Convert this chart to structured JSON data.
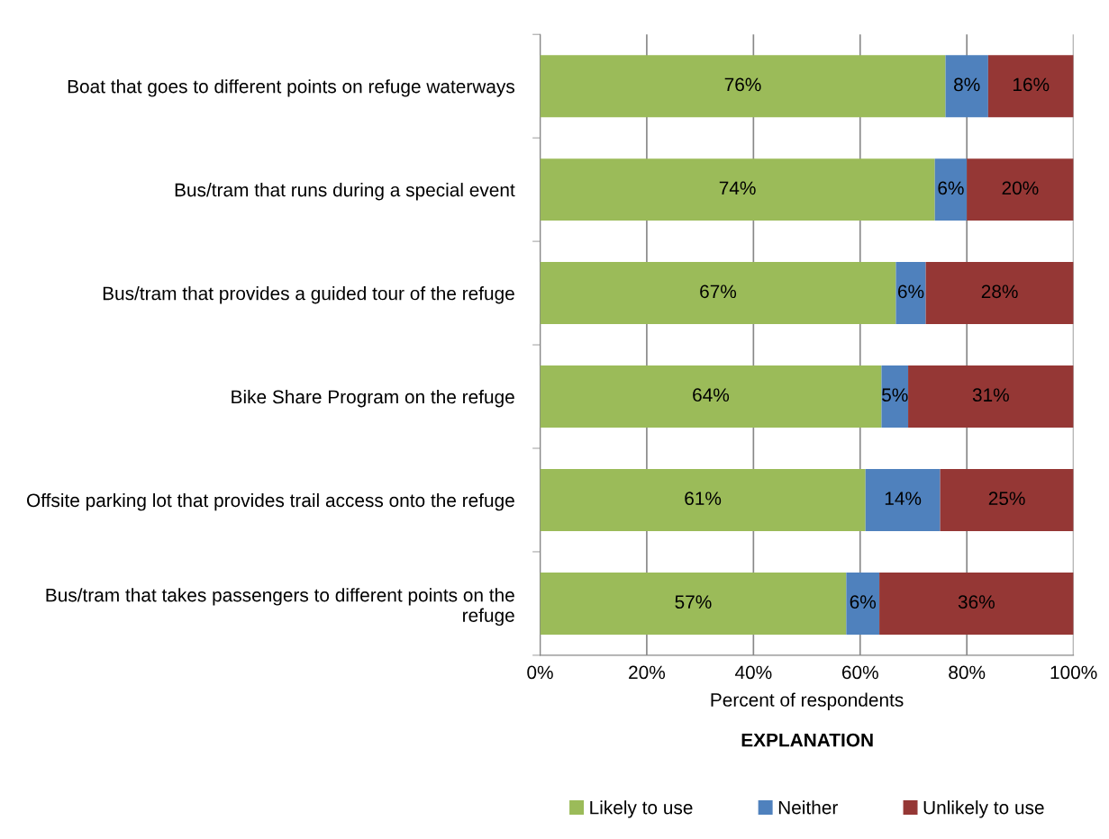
{
  "chart_data": {
    "type": "bar",
    "orientation": "horizontal",
    "stacked": true,
    "categories": [
      "Boat that goes to different points on refuge waterways",
      "Bus/tram that runs during a special event",
      "Bus/tram that provides a guided tour of the refuge",
      "Bike Share Program on the refuge",
      "Offsite parking lot that provides trail access onto the refuge",
      "Bus/tram that takes passengers to different points on the refuge"
    ],
    "series": [
      {
        "name": "Likely to use",
        "color": "#9bbb59",
        "values": [
          76,
          74,
          66.7,
          64,
          61,
          57.4
        ],
        "value_labels": [
          "76%",
          "74%",
          "67%",
          "64%",
          "61%",
          "57%"
        ]
      },
      {
        "name": "Neither",
        "color": "#4f81bd",
        "values": [
          8,
          6,
          5.6,
          5,
          14,
          6.2
        ],
        "value_labels": [
          "8%",
          "6%",
          "6%",
          "5%",
          "14%",
          "6%"
        ]
      },
      {
        "name": "Unlikely to use",
        "color": "#953735",
        "values": [
          16,
          20,
          27.7,
          31,
          25,
          36.4
        ],
        "value_labels": [
          "16%",
          "20%",
          "28%",
          "31%",
          "25%",
          "36%"
        ]
      }
    ],
    "xlabel": "Percent of respondents",
    "xlim": [
      0,
      100
    ],
    "xticks": [
      {
        "value": 0,
        "label": "0%"
      },
      {
        "value": 20,
        "label": "20%"
      },
      {
        "value": 40,
        "label": "40%"
      },
      {
        "value": 60,
        "label": "60%"
      },
      {
        "value": 80,
        "label": "80%"
      },
      {
        "value": 100,
        "label": "100%"
      }
    ],
    "grid": "x",
    "legend": "bottom",
    "legend_title": "EXPLANATION"
  }
}
